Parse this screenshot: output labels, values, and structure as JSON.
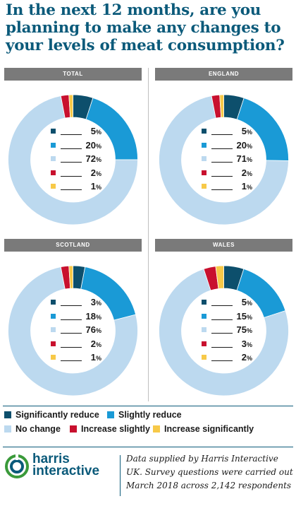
{
  "title_lines": [
    "In the next 12 months, are you",
    "planning to make any changes to",
    "your levels of meat consumption?"
  ],
  "colors": {
    "significantly_reduce": "#0d4f6c",
    "slightly_reduce": "#1a9ad6",
    "no_change": "#bcd9ef",
    "increase_slightly": "#c8102e",
    "increase_significantly": "#f7c948",
    "header_bg": "#7a7a7a",
    "title": "#0b5a7a"
  },
  "pct_symbol": "%",
  "chart_data": [
    {
      "type": "pie",
      "title": "TOTAL",
      "series": [
        {
          "labels": [
            "Significantly reduce",
            "Slightly reduce",
            "No change",
            "Increase slightly",
            "Increase significantly"
          ],
          "values": [
            5,
            20,
            72,
            2,
            1
          ]
        }
      ]
    },
    {
      "type": "pie",
      "title": "ENGLAND",
      "series": [
        {
          "labels": [
            "Significantly reduce",
            "Slightly reduce",
            "No change",
            "Increase slightly",
            "Increase significantly"
          ],
          "values": [
            5,
            20,
            71,
            2,
            1
          ]
        }
      ]
    },
    {
      "type": "pie",
      "title": "SCOTLAND",
      "series": [
        {
          "labels": [
            "Significantly reduce",
            "Slightly reduce",
            "No change",
            "Increase slightly",
            "Increase significantly"
          ],
          "values": [
            3,
            18,
            76,
            2,
            1
          ]
        }
      ]
    },
    {
      "type": "pie",
      "title": "WALES",
      "series": [
        {
          "labels": [
            "Significantly reduce",
            "Slightly reduce",
            "No change",
            "Increase slightly",
            "Increase significantly"
          ],
          "values": [
            5,
            15,
            75,
            3,
            2
          ]
        }
      ]
    }
  ],
  "legend": [
    {
      "label": "Significantly reduce",
      "color_key": "significantly_reduce"
    },
    {
      "label": "Slightly reduce",
      "color_key": "slightly_reduce"
    },
    {
      "label": "No change",
      "color_key": "no_change"
    },
    {
      "label": "Increase slightly",
      "color_key": "increase_slightly"
    },
    {
      "label": "Increase significantly",
      "color_key": "increase_significantly"
    }
  ],
  "logo": {
    "line1": "harris",
    "line2": "interactive"
  },
  "note_lines": [
    "Data supplied by Harris Interactive",
    "UK.  Survey questions were carried out",
    "March 2018 across 2,142 respondents"
  ]
}
